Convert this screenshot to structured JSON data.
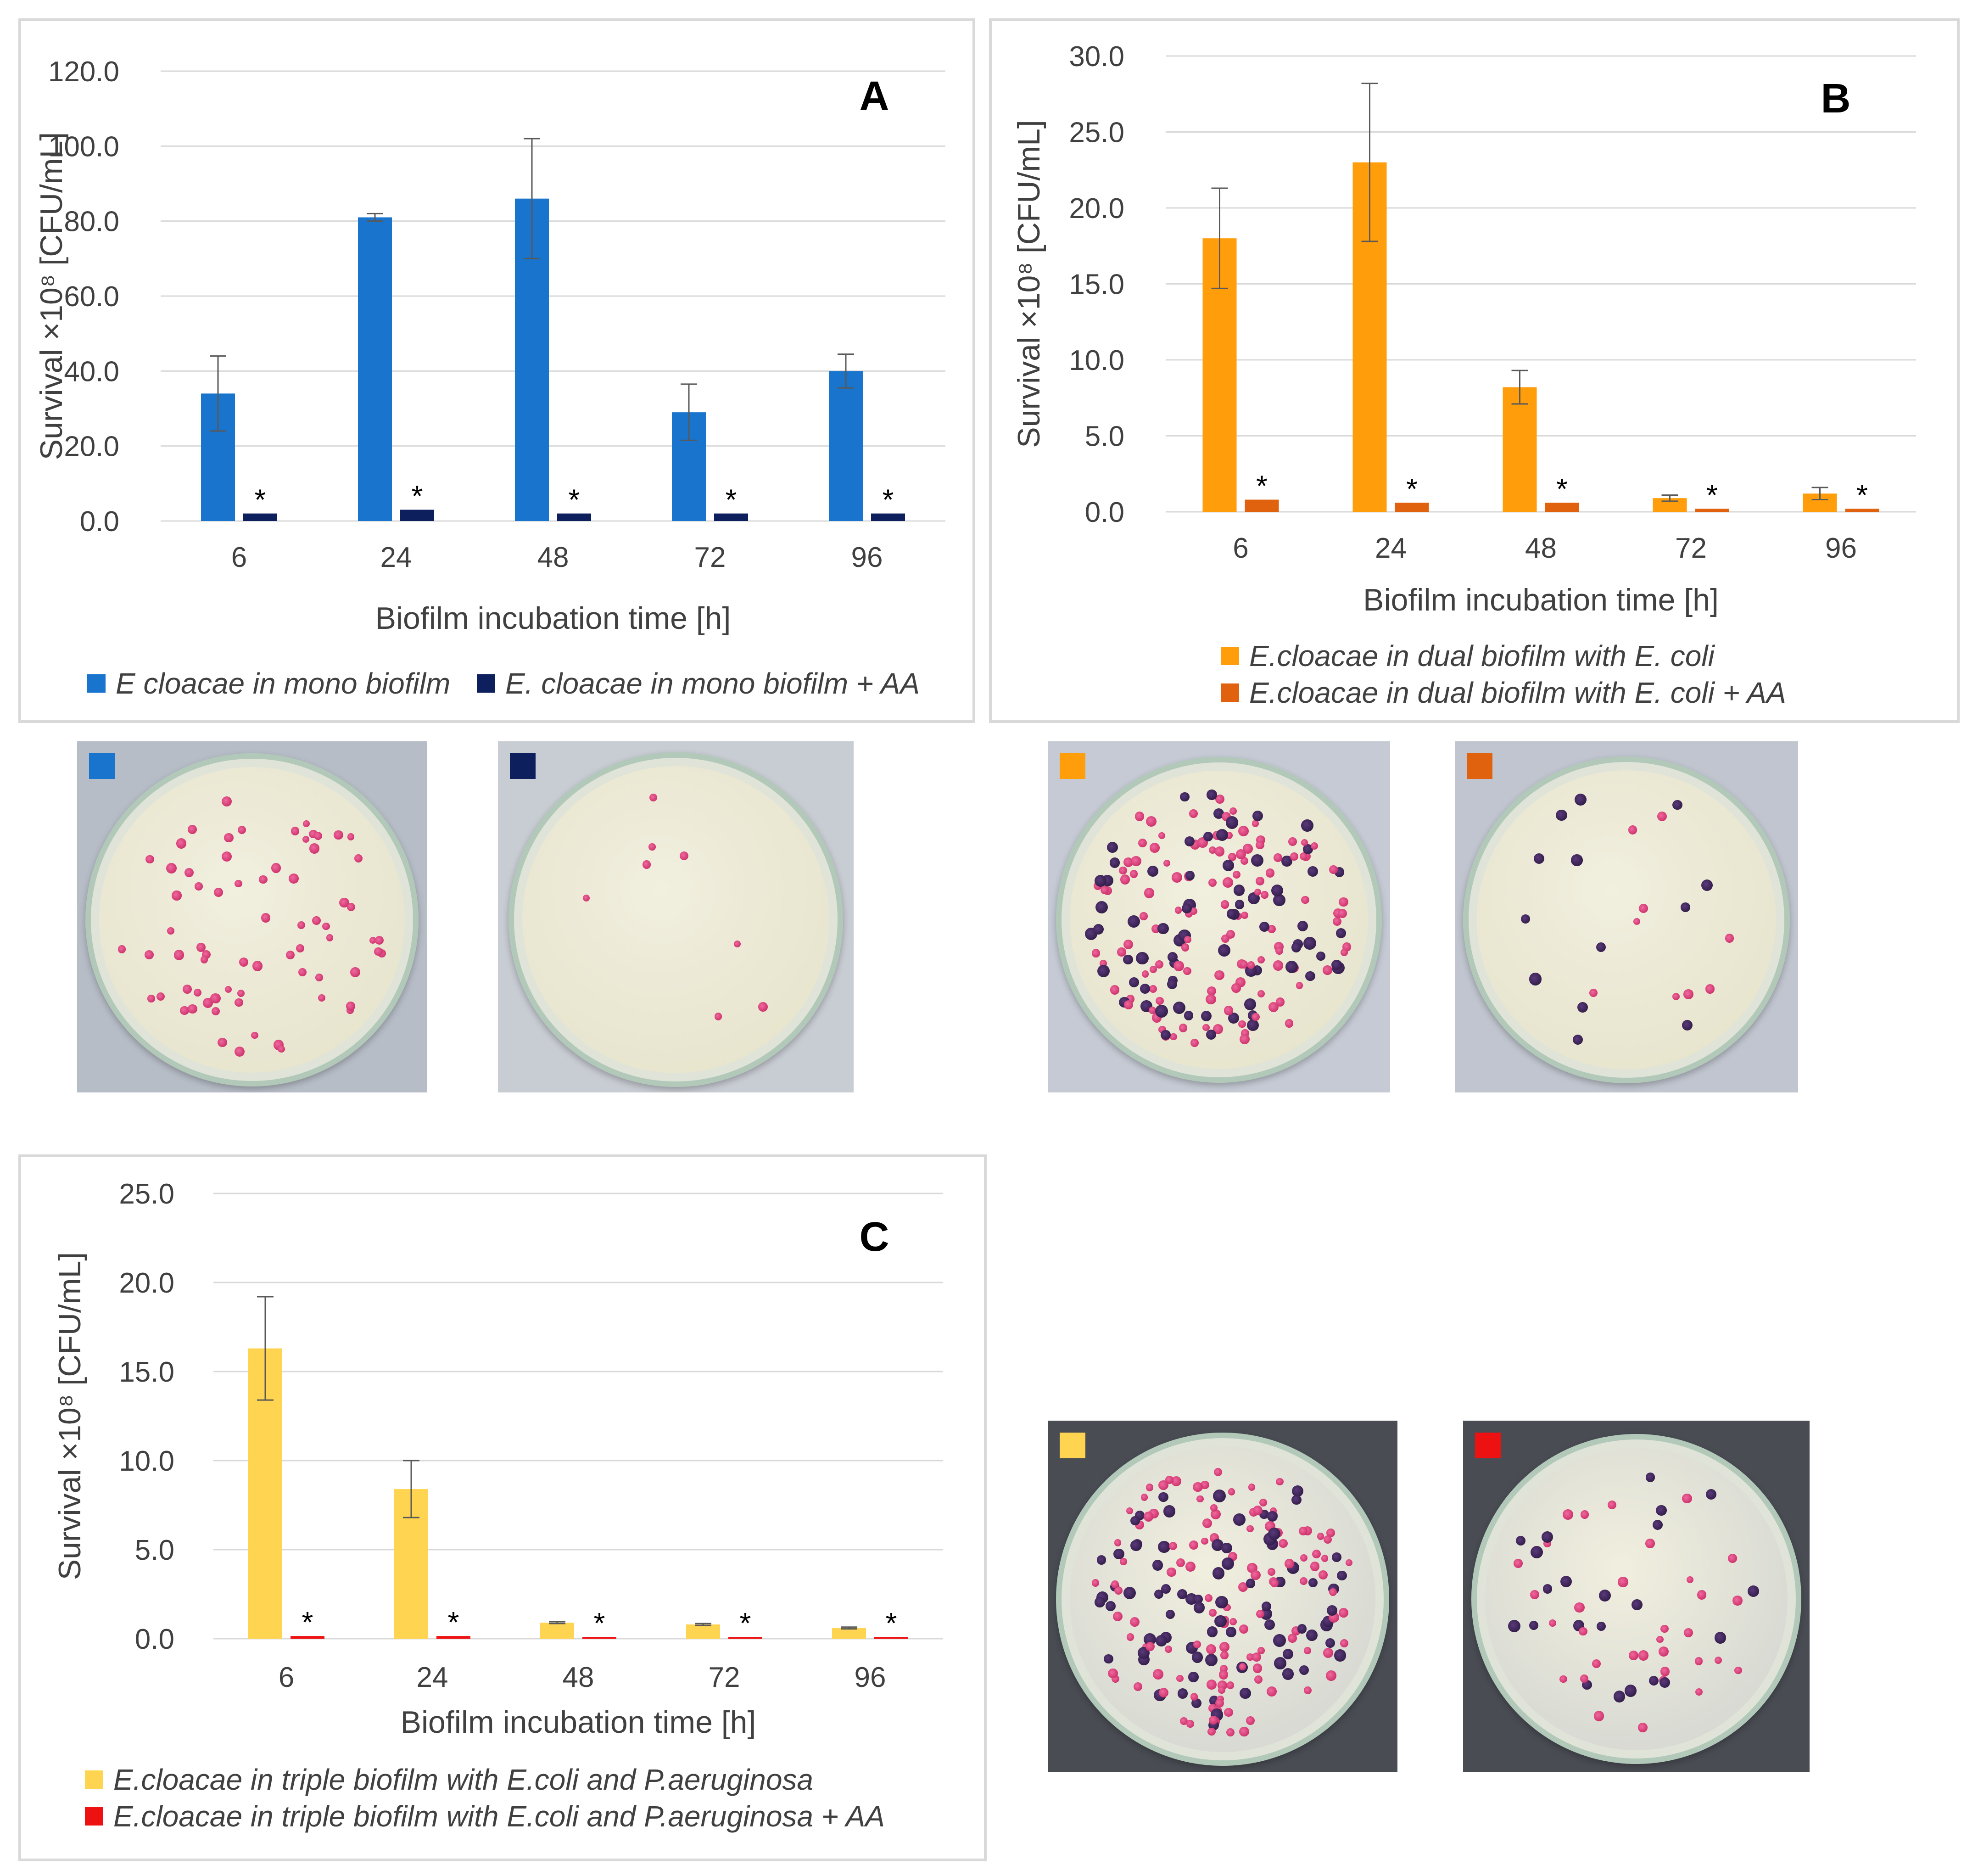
{
  "chart_data": [
    {
      "type": "bar",
      "panel_label": "A",
      "categories": [
        "6",
        "24",
        "48",
        "72",
        "96"
      ],
      "xlabel": "Biofilm incubation time [h]",
      "ylabel": "Survival ×10⁸ [CFU/mL]",
      "ylim": [
        0,
        120
      ],
      "yticks": [
        "0.0",
        "20.0",
        "40.0",
        "60.0",
        "80.0",
        "100.0",
        "120.0"
      ],
      "grid": true,
      "legend_position": "bottom",
      "significance_marker": "*",
      "series": [
        {
          "name": "E cloacae in mono biofilm",
          "color": "#1874cd",
          "values": [
            34,
            81,
            86,
            29,
            40
          ],
          "errors": [
            10,
            1,
            16,
            7.5,
            4.5
          ]
        },
        {
          "name": "E. cloacae in mono biofilm + AA",
          "color": "#0d1f5c",
          "values": [
            2,
            3,
            2,
            2,
            2
          ],
          "errors": [
            0,
            0,
            0,
            0,
            0
          ]
        }
      ]
    },
    {
      "type": "bar",
      "panel_label": "B",
      "categories": [
        "6",
        "24",
        "48",
        "72",
        "96"
      ],
      "xlabel": "Biofilm incubation time [h]",
      "ylabel": "Survival ×10⁸ [CFU/mL]",
      "ylim": [
        0,
        30
      ],
      "yticks": [
        "0.0",
        "5.0",
        "10.0",
        "15.0",
        "20.0",
        "25.0",
        "30.0"
      ],
      "grid": true,
      "legend_position": "bottom",
      "significance_marker": "*",
      "series": [
        {
          "name": "E.cloacae in dual biofilm with E. coli",
          "color": "#ff9d0a",
          "values": [
            18,
            23,
            8.2,
            0.9,
            1.2
          ],
          "errors": [
            3.3,
            5.2,
            1.1,
            0.2,
            0.4
          ]
        },
        {
          "name": "E.cloacae in dual biofilm with E. coli + AA",
          "color": "#e0620e",
          "values": [
            0.8,
            0.6,
            0.6,
            0.2,
            0.2
          ],
          "errors": [
            0,
            0,
            0,
            0,
            0
          ]
        }
      ]
    },
    {
      "type": "bar",
      "panel_label": "C",
      "categories": [
        "6",
        "24",
        "48",
        "72",
        "96"
      ],
      "xlabel": "Biofilm incubation time [h]",
      "ylabel": "Survival ×10⁸ [CFU/mL]",
      "ylim": [
        0,
        25
      ],
      "yticks": [
        "0.0",
        "5.0",
        "10.0",
        "15.0",
        "20.0",
        "25.0"
      ],
      "grid": true,
      "legend_position": "bottom",
      "significance_marker": "*",
      "series": [
        {
          "name": "E.cloacae in triple biofilm with E.coli and P.aeruginosa",
          "color": "#ffd450",
          "values": [
            16.3,
            8.4,
            0.9,
            0.8,
            0.6
          ],
          "errors": [
            2.9,
            1.6,
            0.05,
            0.05,
            0.05
          ]
        },
        {
          "name": "E.cloacae in triple biofilm with E.coli and P.aeruginosa  + AA",
          "color": "#ee1111",
          "values": [
            0.15,
            0.15,
            0.1,
            0.1,
            0.1
          ],
          "errors": [
            0,
            0,
            0,
            0,
            0
          ]
        }
      ]
    }
  ],
  "photos": [
    {
      "name": "plate-mono",
      "marker_color": "#1874cd",
      "background": "#b7bdc7",
      "colonies": "sparse-pink",
      "count": 70
    },
    {
      "name": "plate-mono-aa",
      "marker_color": "#0d1f5c",
      "background": "#c8ccd3",
      "colonies": "few-pink",
      "count": 8
    },
    {
      "name": "plate-dual",
      "marker_color": "#ff9d0a",
      "background": "#c5cad4",
      "colonies": "mixed",
      "count": 190
    },
    {
      "name": "plate-dual-aa",
      "marker_color": "#e0620e",
      "background": "#c0c5cf",
      "colonies": "mixed-few",
      "count": 22
    },
    {
      "name": "plate-triple",
      "marker_color": "#ffd450",
      "background": "#4a4c54",
      "colonies": "mixed-dense",
      "count": 200
    },
    {
      "name": "plate-triple-aa",
      "marker_color": "#ee1111",
      "background": "#4a4c54",
      "colonies": "mixed-medium",
      "count": 55
    }
  ]
}
